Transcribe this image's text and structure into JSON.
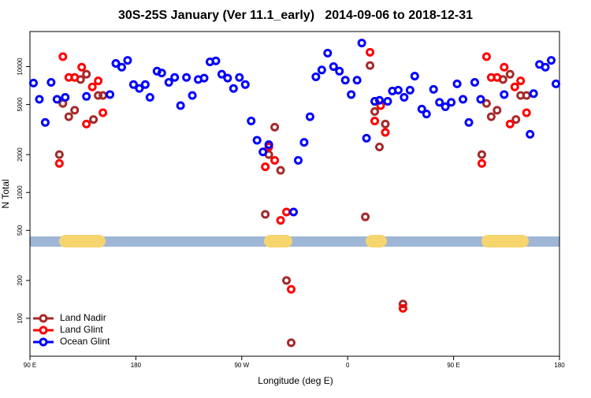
{
  "chart_data": {
    "type": "scatter",
    "title": "30S-25S January (Ver 11.1_early)   2014-09-06 to 2018-12-31",
    "xlabel": "Longitude (deg E)",
    "ylabel": "N Total",
    "xlim": [
      90,
      540
    ],
    "ylim": [
      50,
      19000
    ],
    "ylog": true,
    "legend": "lower left",
    "xticks": [
      {
        "value": 90,
        "label": "90 E"
      },
      180,
      {
        "value": 270,
        "label": "90 W"
      },
      {
        "value": 360,
        "label": "0"
      },
      {
        "value": 450,
        "label": "90 E"
      },
      {
        "value": 540,
        "label": "180"
      }
    ],
    "yticks": [
      100,
      200,
      500,
      1000,
      2000,
      5000,
      10000
    ],
    "series": [
      {
        "name": "Land Nadir",
        "color": "#a52a2a",
        "x": [
          115,
          118,
          123,
          128,
          133,
          138,
          144,
          148,
          152,
          290,
          293,
          298,
          303,
          308,
          312,
          375,
          379,
          383,
          387,
          392,
          407,
          474,
          478,
          482,
          487,
          492,
          498,
          503,
          507,
          512
        ],
        "values": [
          2000,
          5100,
          4000,
          4500,
          7900,
          8700,
          3800,
          5900,
          5900,
          670,
          2000,
          3300,
          1500,
          200,
          64,
          640,
          10200,
          4400,
          2300,
          3500,
          130,
          2000,
          5100,
          4000,
          4500,
          7900,
          8700,
          3800,
          5900,
          5900
        ]
      },
      {
        "name": "Land Glint",
        "color": "#ff0000",
        "x": [
          115,
          118,
          123,
          128,
          134,
          138,
          143,
          148,
          152,
          290,
          293,
          298,
          303,
          308,
          312,
          379,
          383,
          388,
          392,
          407,
          474,
          478,
          482,
          487,
          493,
          498,
          502,
          507,
          512
        ],
        "values": [
          1700,
          12000,
          8200,
          8200,
          9900,
          3500,
          6900,
          7700,
          4300,
          1600,
          2300,
          1800,
          600,
          700,
          170,
          13000,
          3700,
          4900,
          3000,
          120,
          1700,
          12000,
          8200,
          8200,
          9900,
          3500,
          6900,
          7700,
          4300
        ]
      },
      {
        "name": "Ocean Glint",
        "color": "#0000ff",
        "x": [
          93,
          98,
          103,
          108,
          113,
          120,
          138,
          158,
          163,
          168,
          173,
          178,
          183,
          188,
          192,
          198,
          202,
          208,
          213,
          218,
          223,
          228,
          233,
          238,
          243,
          248,
          253,
          258,
          263,
          268,
          273,
          278,
          283,
          288,
          293,
          314,
          318,
          323,
          328,
          333,
          338,
          343,
          348,
          353,
          358,
          363,
          368,
          372,
          376,
          383,
          387,
          394,
          398,
          403,
          408,
          413,
          417,
          423,
          427,
          433,
          438,
          443,
          448,
          453,
          458,
          463,
          468,
          473,
          493,
          515,
          518,
          523,
          528,
          533,
          537
        ],
        "values": [
          7400,
          5500,
          3600,
          7500,
          5500,
          5700,
          5800,
          6000,
          10600,
          9900,
          11200,
          7200,
          6700,
          7200,
          5700,
          9200,
          8900,
          7500,
          8200,
          4900,
          8200,
          5900,
          7900,
          8100,
          10900,
          11100,
          8700,
          8100,
          6700,
          8200,
          7200,
          3700,
          2600,
          2100,
          2400,
          700,
          1800,
          2500,
          4000,
          8300,
          9400,
          12800,
          10000,
          9200,
          7800,
          6000,
          7800,
          15400,
          2700,
          5300,
          5400,
          5300,
          6400,
          6500,
          5700,
          6500,
          8400,
          4600,
          4200,
          6600,
          5200,
          4800,
          5200,
          7300,
          5500,
          3600,
          7500,
          5500,
          6000,
          2900,
          6100,
          10400,
          9900,
          11200,
          7300
        ]
      }
    ]
  }
}
